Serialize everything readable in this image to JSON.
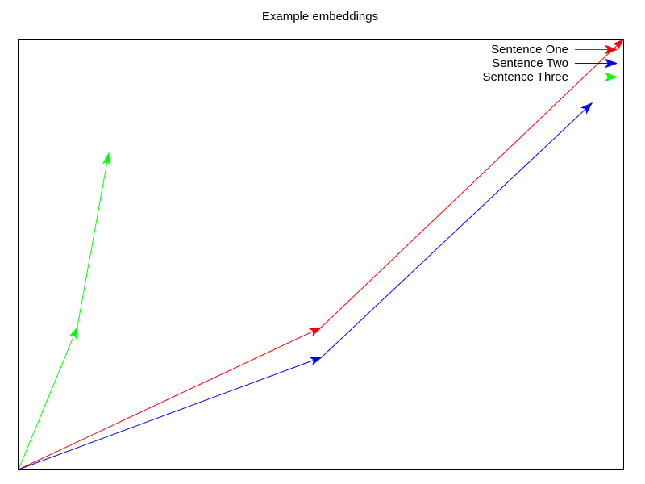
{
  "title": "Example embeddings",
  "colors": {
    "background": "#ffffff",
    "border": "#000000",
    "text": "#000000",
    "sentence_one": "#ff0000",
    "sentence_two": "#0000ff",
    "sentence_three": "#00ff00"
  },
  "chart_data": {
    "type": "vector",
    "title": "Example embeddings",
    "xlabel": "",
    "ylabel": "",
    "axes": {
      "frame": "box",
      "ticks": "none",
      "tick_labels": "none",
      "grid": false,
      "xlim_normalized": [
        0,
        1
      ],
      "ylim_normalized": [
        0,
        1
      ]
    },
    "legend": {
      "position": "top-right",
      "sample_style": "arrow",
      "entries": [
        "Sentence One",
        "Sentence Two",
        "Sentence Three"
      ]
    },
    "vectors": [
      {
        "name": "Sentence One",
        "color": "#ff0000",
        "points": [
          [
            0.0,
            0.0
          ],
          [
            0.5,
            0.33
          ],
          [
            1.0,
            1.0
          ]
        ]
      },
      {
        "name": "Sentence Two",
        "color": "#0000ff",
        "points": [
          [
            0.0,
            0.0
          ],
          [
            0.501,
            0.261
          ],
          [
            0.948,
            0.852
          ]
        ]
      },
      {
        "name": "Sentence Three",
        "color": "#00ff00",
        "points": [
          [
            0.0,
            0.0
          ],
          [
            0.097,
            0.33
          ],
          [
            0.149,
            0.735
          ]
        ]
      }
    ]
  }
}
